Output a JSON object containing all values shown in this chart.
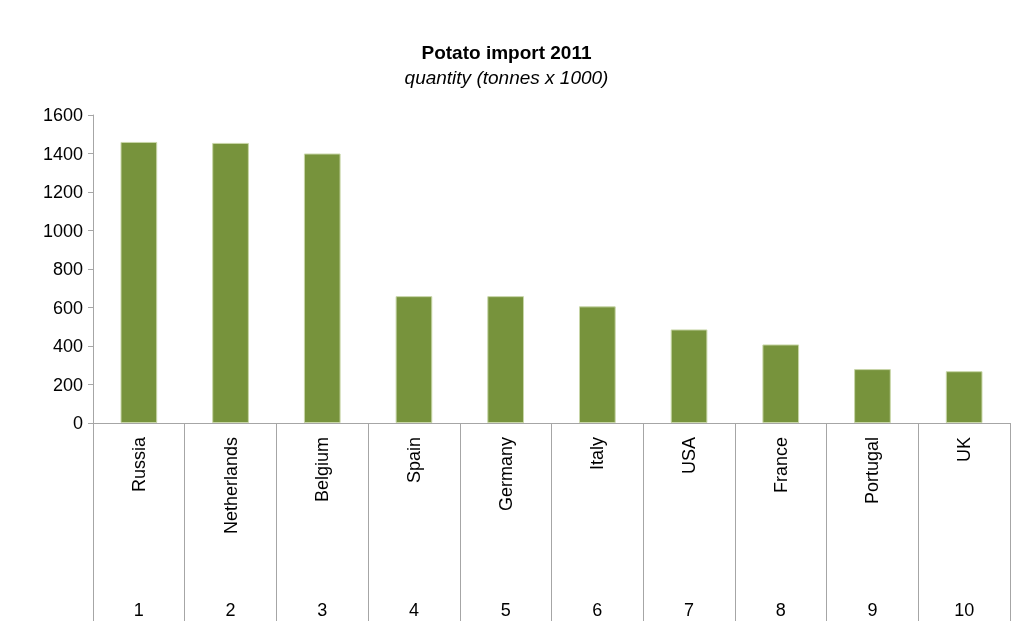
{
  "chart_data": {
    "type": "bar",
    "title": "Potato import 2011",
    "subtitle": "quantity (tonnes x 1000)",
    "categories": [
      "Russia",
      "Netherlands",
      "Belgium",
      "Spain",
      "Germany",
      "Italy",
      "USA",
      "France",
      "Portugal",
      "UK"
    ],
    "values": [
      1460,
      1455,
      1400,
      659,
      659,
      606,
      486,
      408,
      280,
      269
    ],
    "color": "#77933c",
    "ylim": [
      0,
      1600
    ],
    "yticks": [
      0,
      200,
      400,
      600,
      800,
      1000,
      1200,
      1400,
      1600
    ],
    "grid": false,
    "annotations": [
      "1",
      "2",
      "3",
      "4",
      "5",
      "6",
      "7",
      "8",
      "9",
      "10"
    ]
  }
}
